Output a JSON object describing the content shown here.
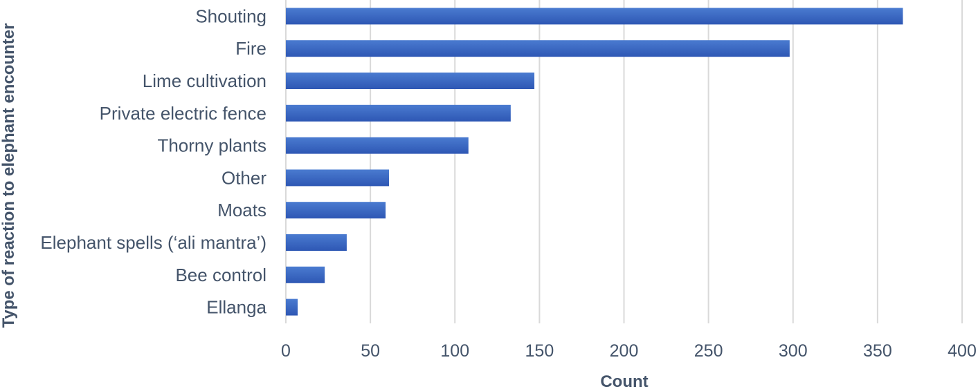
{
  "chart_data": {
    "type": "bar",
    "orientation": "horizontal",
    "categories": [
      "Shouting",
      "Fire",
      "Lime cultivation",
      "Private electric fence",
      "Thorny plants",
      "Other",
      "Moats",
      "Elephant spells (‘ali mantra’)",
      "Bee control",
      "Ellanga"
    ],
    "values": [
      365,
      298,
      147,
      133,
      108,
      61,
      59,
      36,
      23,
      7
    ],
    "xlabel": "Count",
    "ylabel": "Type of reaction to elephant encounter",
    "xlim": [
      0,
      400
    ],
    "xticks": [
      0,
      50,
      100,
      150,
      200,
      250,
      300,
      350,
      400
    ],
    "grid": "vertical",
    "legend": "none",
    "colors": {
      "bar_top": "#4A7BD0",
      "bar_bottom": "#2E57B4",
      "text": "#44546A",
      "grid": "#D9D9D9"
    }
  }
}
